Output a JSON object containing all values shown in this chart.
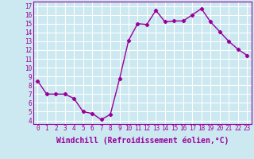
{
  "x": [
    0,
    1,
    2,
    3,
    4,
    5,
    6,
    7,
    8,
    9,
    10,
    11,
    12,
    13,
    14,
    15,
    16,
    17,
    18,
    19,
    20,
    21,
    22,
    23
  ],
  "y": [
    8.5,
    7.0,
    7.0,
    7.0,
    6.5,
    5.0,
    4.8,
    4.1,
    4.7,
    8.7,
    13.1,
    15.0,
    14.9,
    16.5,
    15.2,
    15.3,
    15.3,
    16.0,
    16.7,
    15.2,
    14.1,
    13.0,
    12.1,
    11.4
  ],
  "line_color": "#990099",
  "marker": "D",
  "marker_size": 2.2,
  "bg_color": "#cce8f0",
  "grid_color": "#ffffff",
  "xlabel": "Windchill (Refroidissement éolien,°C)",
  "yticks": [
    4,
    5,
    6,
    7,
    8,
    9,
    10,
    11,
    12,
    13,
    14,
    15,
    16,
    17
  ],
  "ylim": [
    3.6,
    17.5
  ],
  "xlim": [
    -0.5,
    23.5
  ],
  "xticks": [
    0,
    1,
    2,
    3,
    4,
    5,
    6,
    7,
    8,
    9,
    10,
    11,
    12,
    13,
    14,
    15,
    16,
    17,
    18,
    19,
    20,
    21,
    22,
    23
  ],
  "tick_fontsize": 5.5,
  "xlabel_fontsize": 7.0,
  "linewidth": 1.0
}
